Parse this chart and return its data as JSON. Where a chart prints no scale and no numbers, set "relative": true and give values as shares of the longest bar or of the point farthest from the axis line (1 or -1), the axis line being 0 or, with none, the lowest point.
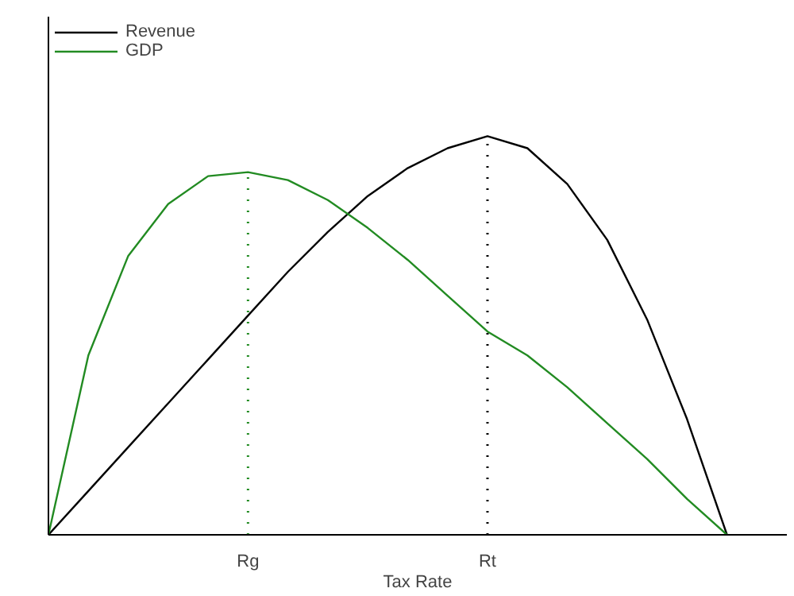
{
  "chart_data": {
    "type": "line",
    "relative": true,
    "xlabel": "Tax Rate",
    "categories": [
      null,
      null,
      null,
      null,
      null,
      "Rg",
      null,
      null,
      null,
      null,
      null,
      "Rt",
      null,
      null,
      null,
      null,
      null,
      null
    ],
    "series": [
      {
        "name": "Revenue",
        "color": "#000000",
        "values": [
          0,
          0.11,
          0.22,
          0.33,
          0.44,
          0.55,
          0.66,
          0.76,
          0.85,
          0.92,
          0.97,
          1.0,
          0.97,
          0.88,
          0.74,
          0.54,
          0.29,
          0
        ]
      },
      {
        "name": "GDP",
        "color": "#228b22",
        "values": [
          0,
          0.45,
          0.7,
          0.83,
          0.9,
          0.91,
          0.89,
          0.84,
          0.77,
          0.69,
          0.6,
          0.51,
          0.45,
          0.37,
          0.28,
          0.19,
          0.09,
          0
        ]
      }
    ],
    "ref_lines": [
      {
        "axis": "x",
        "value": "Rg",
        "color": "#228b22",
        "line_style": "dotted"
      },
      {
        "axis": "x",
        "value": "Rt",
        "color": "#000000",
        "line_style": "dotted"
      }
    ],
    "legend": "top left",
    "grid": false,
    "marker": "none",
    "line_style": "solid"
  }
}
